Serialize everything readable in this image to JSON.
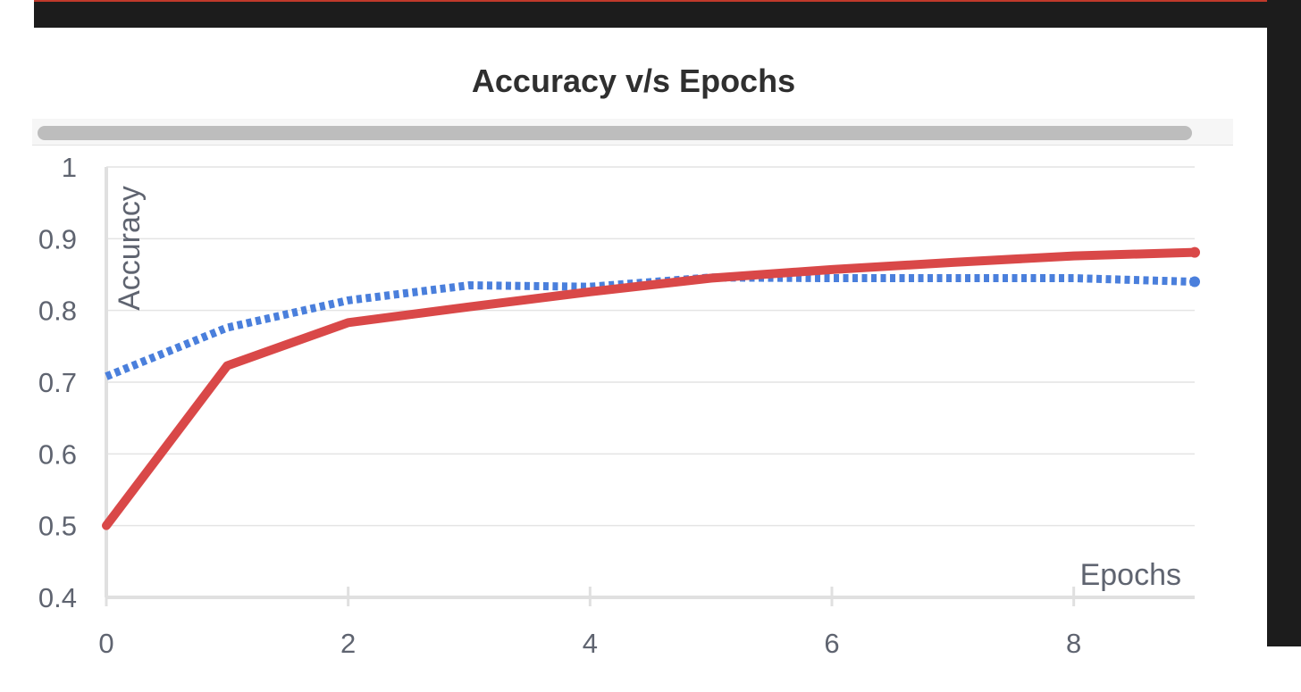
{
  "chart_data": {
    "type": "line",
    "title": "Accuracy v/s Epochs",
    "xlabel": "Epochs",
    "ylabel": "Accuracy",
    "xlim": [
      0,
      9
    ],
    "ylim": [
      0.4,
      1
    ],
    "xticks": [
      "0",
      "2",
      "4",
      "6",
      "8"
    ],
    "yticks": [
      "0.4",
      "0.5",
      "0.6",
      "0.7",
      "0.8",
      "0.9",
      "1"
    ],
    "grid": true,
    "x": [
      0,
      1,
      2,
      3,
      4,
      5,
      6,
      7,
      8,
      9
    ],
    "series": [
      {
        "color": "#d94848",
        "style": "solid",
        "values": [
          0.5,
          0.723,
          0.783,
          0.805,
          0.826,
          0.845,
          0.857,
          0.867,
          0.876,
          0.881
        ]
      },
      {
        "color": "#4a7fdc",
        "style": "dotted",
        "values": [
          0.708,
          0.776,
          0.814,
          0.835,
          0.833,
          0.846,
          0.845,
          0.845,
          0.845,
          0.84
        ]
      }
    ]
  },
  "scrollbar": {
    "icon": "horizontal-scrollbar"
  }
}
